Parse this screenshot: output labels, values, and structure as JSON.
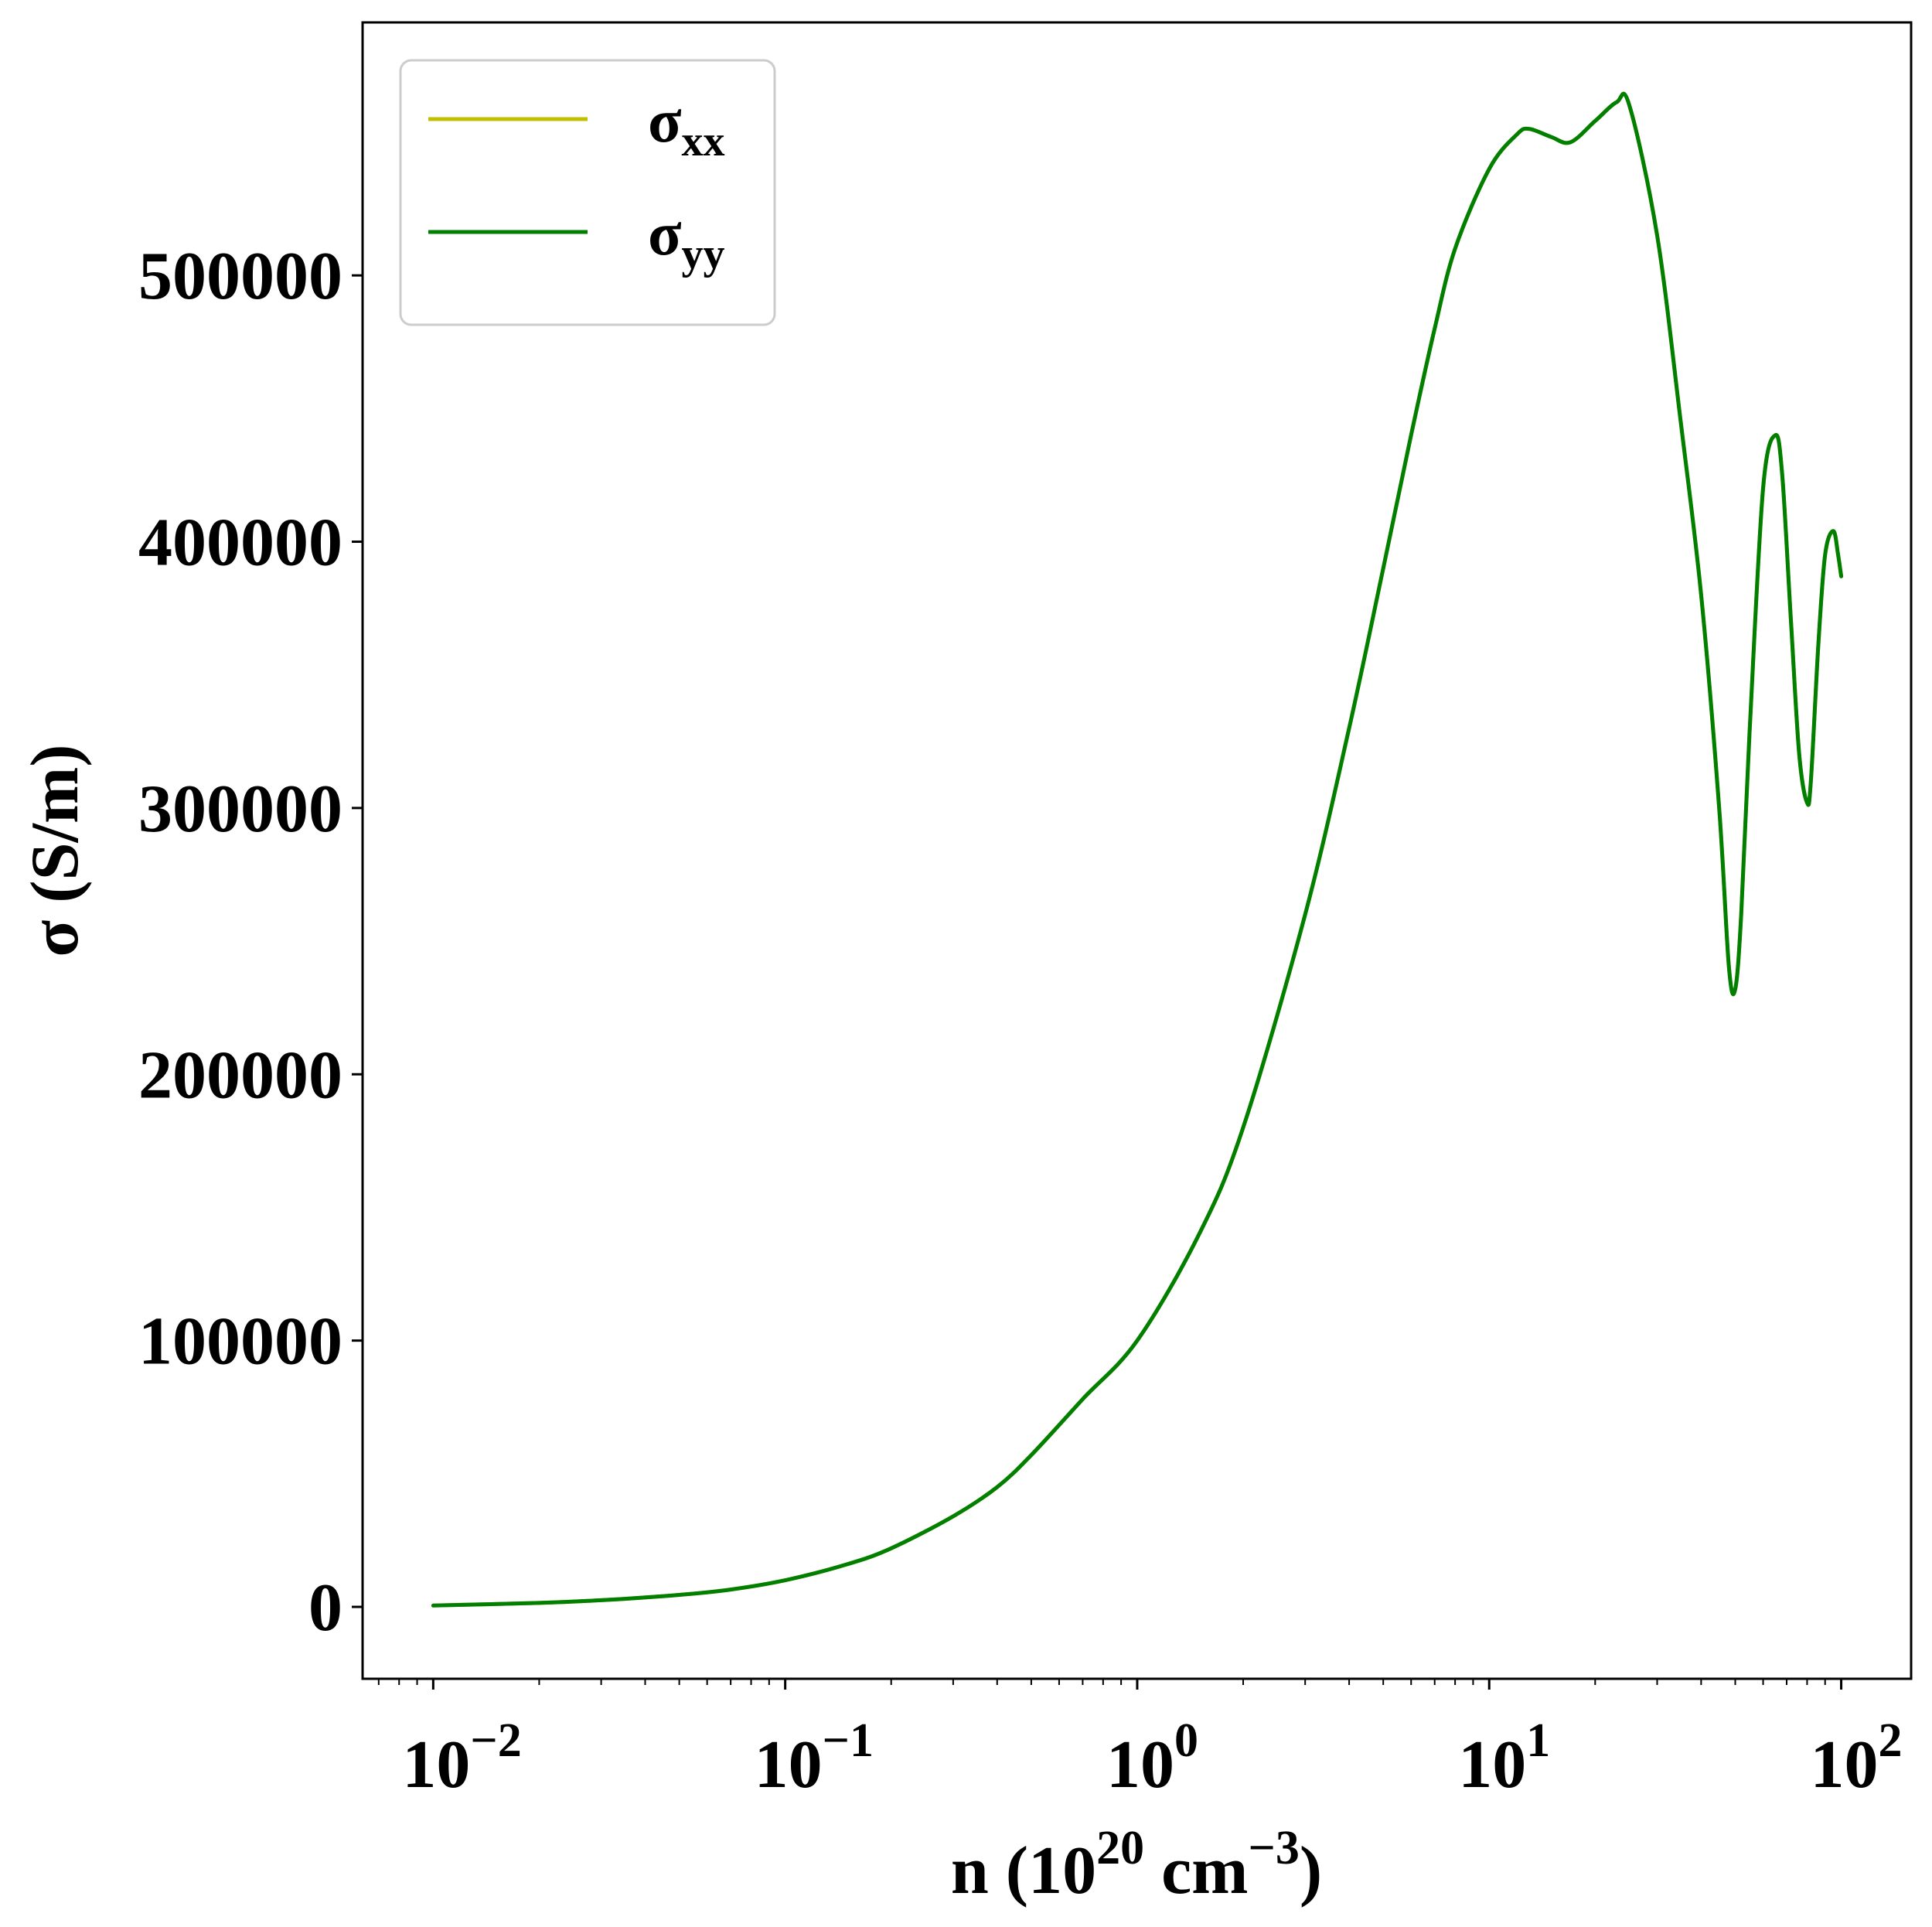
{
  "chart_data": {
    "type": "line",
    "xscale": "log",
    "xlim": [
      0.0063,
      158
    ],
    "ylim": [
      -27000,
      595000
    ],
    "x_ticks": [
      {
        "value": 0.01,
        "base": "10",
        "exp": "−2"
      },
      {
        "value": 0.1,
        "base": "10",
        "exp": "−1"
      },
      {
        "value": 1,
        "base": "10",
        "exp": "0"
      },
      {
        "value": 10,
        "base": "10",
        "exp": "1"
      },
      {
        "value": 100,
        "base": "10",
        "exp": "2"
      }
    ],
    "y_ticks": [
      {
        "value": 0,
        "label": "0"
      },
      {
        "value": 100000,
        "label": "100000"
      },
      {
        "value": 200000,
        "label": "200000"
      },
      {
        "value": 300000,
        "label": "300000"
      },
      {
        "value": 400000,
        "label": "400000"
      },
      {
        "value": 500000,
        "label": "500000"
      }
    ],
    "xlabel": {
      "prefix": "n (10",
      "sup1": "20",
      "middle": " cm",
      "sup2": "−3",
      "suffix": ")"
    },
    "ylabel": "σ (S/m)",
    "legend": {
      "placement": "top-left"
    },
    "series": [
      {
        "name": "σ",
        "subscript": "xx",
        "color": "#bfbf00",
        "x": [
          0.01,
          0.02,
          0.03,
          0.05,
          0.07,
          0.1,
          0.15,
          0.2,
          0.3,
          0.4,
          0.5,
          0.7,
          1.0,
          1.5,
          2.0,
          3.0,
          4.0,
          5.0,
          6.0,
          7.0,
          8.0,
          10.0,
          12.0,
          13.0,
          15.0,
          17.0,
          20.0,
          23.0,
          25.0,
          30.0,
          35.0,
          40.0,
          45.0,
          48.0,
          50.0,
          52.0,
          55.0,
          60.0,
          65.0,
          68.0,
          72.0,
          76.0,
          80.0,
          82.0,
          86.0,
          90.0,
          95.0,
          98.0,
          100.0
        ],
        "y": [
          500,
          1500,
          2500,
          4500,
          6500,
          10000,
          16000,
          22000,
          34000,
          45000,
          57000,
          78000,
          100000,
          140000,
          180000,
          260000,
          330000,
          390000,
          440000,
          480000,
          510000,
          540000,
          553000,
          555000,
          552000,
          550000,
          558000,
          565000,
          564000,
          515000,
          445000,
          380000,
          300000,
          240000,
          232000,
          260000,
          330000,
          420000,
          440000,
          425000,
          370000,
          320000,
          302000,
          310000,
          360000,
          395000,
          404000,
          395000,
          387000
        ]
      },
      {
        "name": "σ",
        "subscript": "yy",
        "color": "#007f00",
        "x": [
          0.01,
          0.02,
          0.03,
          0.05,
          0.07,
          0.1,
          0.15,
          0.2,
          0.3,
          0.4,
          0.5,
          0.7,
          1.0,
          1.5,
          2.0,
          3.0,
          4.0,
          5.0,
          6.0,
          7.0,
          8.0,
          10.0,
          12.0,
          13.0,
          15.0,
          17.0,
          20.0,
          23.0,
          25.0,
          30.0,
          35.0,
          40.0,
          45.0,
          48.0,
          50.0,
          52.0,
          55.0,
          60.0,
          65.0,
          68.0,
          72.0,
          76.0,
          80.0,
          82.0,
          86.0,
          90.0,
          95.0,
          98.0,
          100.0
        ],
        "y": [
          500,
          1500,
          2500,
          4500,
          6500,
          10000,
          16000,
          22000,
          34000,
          45000,
          57000,
          78000,
          100000,
          140000,
          180000,
          260000,
          330000,
          390000,
          440000,
          480000,
          510000,
          540000,
          553000,
          555000,
          552000,
          550000,
          558000,
          565000,
          564000,
          515000,
          445000,
          380000,
          300000,
          240000,
          232000,
          260000,
          330000,
          420000,
          440000,
          425000,
          370000,
          320000,
          302000,
          310000,
          360000,
          395000,
          404000,
          395000,
          387000
        ]
      }
    ]
  }
}
